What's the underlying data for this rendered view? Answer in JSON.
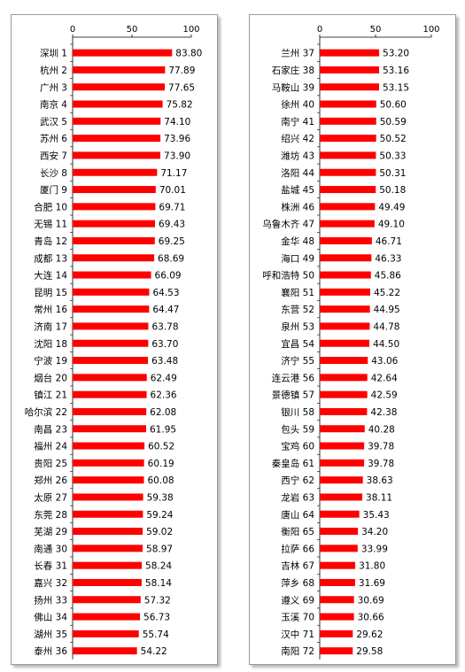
{
  "chart_data": [
    {
      "type": "bar",
      "orientation": "horizontal",
      "xlim": [
        0,
        100
      ],
      "xticks": [
        "0",
        "50",
        "100"
      ],
      "bar_color": "#ff0000",
      "categories": [
        "深圳 1",
        "杭州 2",
        "广州 3",
        "南京 4",
        "武汉 5",
        "苏州 6",
        "西安 7",
        "长沙 8",
        "厦门 9",
        "合肥 10",
        "无锡 11",
        "青岛 12",
        "成都 13",
        "大连 14",
        "昆明 15",
        "常州 16",
        "济南 17",
        "沈阳 18",
        "宁波 19",
        "烟台 20",
        "镇江 21",
        "哈尔滨 22",
        "南昌 23",
        "福州 24",
        "贵阳 25",
        "郑州 26",
        "太原 27",
        "东莞 28",
        "芜湖 29",
        "南通 30",
        "长春 31",
        "嘉兴 32",
        "扬州 33",
        "佛山 34",
        "湖州 35",
        "泰州 36"
      ],
      "values": [
        83.8,
        77.89,
        77.65,
        75.82,
        74.1,
        73.96,
        73.9,
        71.17,
        70.01,
        69.71,
        69.43,
        69.25,
        68.69,
        66.09,
        64.53,
        64.47,
        63.78,
        63.7,
        63.48,
        62.49,
        62.36,
        62.08,
        61.95,
        60.52,
        60.19,
        60.08,
        59.38,
        59.24,
        59.02,
        58.97,
        58.24,
        58.14,
        57.32,
        56.73,
        55.74,
        54.22
      ],
      "value_labels": [
        "83.80",
        "77.89",
        "77.65",
        "75.82",
        "74.10",
        "73.96",
        "73.90",
        "71.17",
        "70.01",
        "69.71",
        "69.43",
        "69.25",
        "68.69",
        "66.09",
        "64.53",
        "64.47",
        "63.78",
        "63.70",
        "63.48",
        "62.49",
        "62.36",
        "62.08",
        "61.95",
        "60.52",
        "60.19",
        "60.08",
        "59.38",
        "59.24",
        "59.02",
        "58.97",
        "58.24",
        "58.14",
        "57.32",
        "56.73",
        "55.74",
        "54.22"
      ]
    },
    {
      "type": "bar",
      "orientation": "horizontal",
      "xlim": [
        0,
        100
      ],
      "xticks": [
        "0",
        "50",
        "100"
      ],
      "bar_color": "#ff0000",
      "categories": [
        "兰州 37",
        "石家庄 38",
        "马鞍山 39",
        "徐州 40",
        "南宁 41",
        "绍兴 42",
        "潍坊 43",
        "洛阳 44",
        "盐城 45",
        "株洲 46",
        "乌鲁木齐 47",
        "金华 48",
        "海口 49",
        "呼和浩特 50",
        "襄阳 51",
        "东营 52",
        "泉州 53",
        "宜昌 54",
        "济宁 55",
        "连云港 56",
        "景德镇 57",
        "银川 58",
        "包头 59",
        "宝鸡 60",
        "秦皇岛 61",
        "西宁 62",
        "龙岩 63",
        "唐山 64",
        "衡阳 65",
        "拉萨 66",
        "吉林 67",
        "萍乡 68",
        "遵义 69",
        "玉溪 70",
        "汉中 71",
        "南阳 72"
      ],
      "values": [
        53.2,
        53.16,
        53.15,
        50.6,
        50.59,
        50.52,
        50.33,
        50.31,
        50.18,
        49.49,
        49.1,
        46.71,
        46.33,
        45.86,
        45.22,
        44.95,
        44.78,
        44.5,
        43.06,
        42.64,
        42.59,
        42.38,
        40.28,
        39.78,
        39.78,
        38.63,
        38.11,
        35.43,
        34.2,
        33.99,
        31.8,
        31.69,
        30.69,
        30.66,
        29.62,
        29.58
      ],
      "value_labels": [
        "53.20",
        "53.16",
        "53.15",
        "50.60",
        "50.59",
        "50.52",
        "50.33",
        "50.31",
        "50.18",
        "49.49",
        "49.10",
        "46.71",
        "46.33",
        "45.86",
        "45.22",
        "44.95",
        "44.78",
        "44.50",
        "43.06",
        "42.64",
        "42.59",
        "42.38",
        "40.28",
        "39.78",
        "39.78",
        "38.63",
        "38.11",
        "35.43",
        "34.20",
        "33.99",
        "31.80",
        "31.69",
        "30.69",
        "30.66",
        "29.62",
        "29.58"
      ]
    }
  ]
}
